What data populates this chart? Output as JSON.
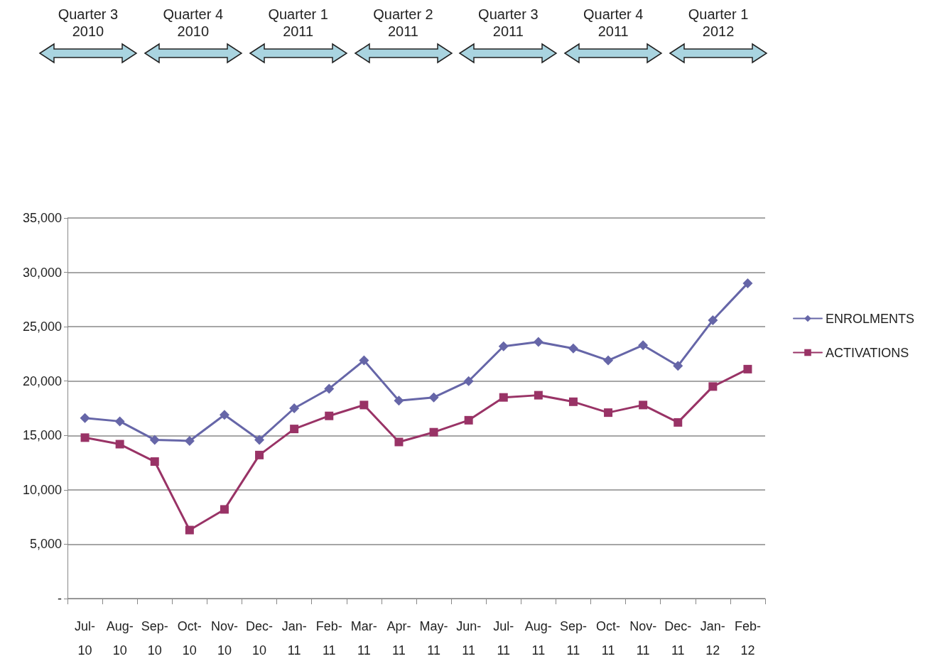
{
  "chart_data": {
    "type": "line",
    "categories": [
      "Jul-10",
      "Aug-10",
      "Sep-10",
      "Oct-10",
      "Nov-10",
      "Dec-10",
      "Jan-11",
      "Feb-11",
      "Mar-11",
      "Apr-11",
      "May-11",
      "Jun-11",
      "Jul-11",
      "Aug-11",
      "Sep-11",
      "Oct-11",
      "Nov-11",
      "Dec-11",
      "Jan-12",
      "Feb-12"
    ],
    "series": [
      {
        "name": "ENROLMENTS",
        "color": "#6666a8",
        "marker": "diamond",
        "values": [
          16600,
          16300,
          14600,
          14500,
          16900,
          14600,
          17500,
          19300,
          21900,
          18200,
          18500,
          20000,
          23200,
          23600,
          23000,
          21900,
          23300,
          21400,
          25600,
          29000
        ]
      },
      {
        "name": "ACTIVATIONS",
        "color": "#993366",
        "marker": "square",
        "values": [
          14800,
          14200,
          12600,
          6300,
          8200,
          13200,
          15600,
          16800,
          17800,
          14400,
          15300,
          16400,
          18500,
          18700,
          18100,
          17100,
          17800,
          16200,
          19500,
          21100
        ]
      }
    ],
    "ylim": [
      0,
      35000
    ],
    "yticks": [
      {
        "value": 0,
        "label": "-"
      },
      {
        "value": 5000,
        "label": "5,000"
      },
      {
        "value": 10000,
        "label": "10,000"
      },
      {
        "value": 15000,
        "label": "15,000"
      },
      {
        "value": 20000,
        "label": "20,000"
      },
      {
        "value": 25000,
        "label": "25,000"
      },
      {
        "value": 30000,
        "label": "30,000"
      },
      {
        "value": 35000,
        "label": "35,000"
      }
    ],
    "grid": "y",
    "legend": "right",
    "line_style": "solid",
    "annotations": [
      "Quarter 3 2010",
      "Quarter 4 2010",
      "Quarter 1 2011",
      "Quarter 2 2011",
      "Quarter 3 2011",
      "Quarter 4 2011",
      "Quarter 1 2012"
    ]
  }
}
